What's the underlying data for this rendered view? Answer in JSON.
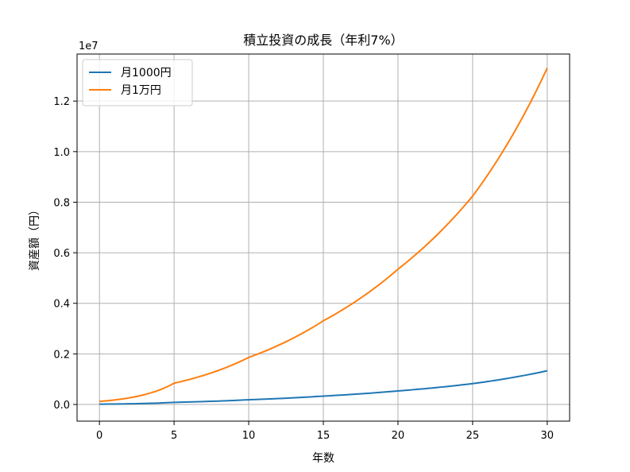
{
  "chart_data": {
    "type": "line",
    "title": "積立投資の成長（年利7%）",
    "xlabel": "年数",
    "ylabel": "資産額（円）",
    "y_offset_label": "1e7",
    "xlim": [
      -1.5,
      31.5
    ],
    "ylim": [
      -0.066,
      1.386
    ],
    "y_unit_multiplier": 10000000,
    "xticks": [
      0,
      5,
      10,
      15,
      20,
      25,
      30
    ],
    "xtick_labels": [
      "0",
      "5",
      "10",
      "15",
      "20",
      "25",
      "30"
    ],
    "yticks": [
      0.0,
      0.2,
      0.4,
      0.6,
      0.8,
      1.0,
      1.2
    ],
    "ytick_labels": [
      "0.0",
      "0.2",
      "0.4",
      "0.6",
      "0.8",
      "1.0",
      "1.2"
    ],
    "grid": true,
    "legend_position": "top-left",
    "x": [
      0,
      5,
      10,
      15,
      20,
      25,
      30
    ],
    "series": [
      {
        "name": "月1000円",
        "color": "#1f77b4",
        "values": [
          0.0012,
          0.0084,
          0.0186,
          0.0331,
          0.0535,
          0.0824,
          0.1331
        ]
      },
      {
        "name": "月1万円",
        "color": "#ff7f0e",
        "values": [
          0.012,
          0.084,
          0.186,
          0.331,
          0.535,
          0.824,
          1.331
        ]
      }
    ]
  }
}
